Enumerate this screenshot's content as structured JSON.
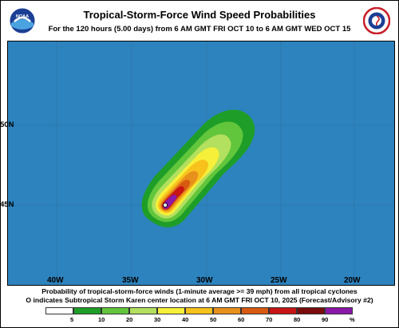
{
  "header": {
    "title": "Tropical-Storm-Force Wind Speed Probabilities",
    "subtitle": "For the 120 hours (5.00 days) from 6 AM GMT FRI OCT 10 to 6 AM GMT WED OCT 15",
    "left_logo": "noaa-logo",
    "right_logo": "national-weather-service-logo"
  },
  "map": {
    "ocean_color": "#2d83be",
    "grid_color": "#1f6aa0",
    "lat_labels": [
      "50N",
      "45N"
    ],
    "lon_labels": [
      "40W",
      "35W",
      "30W",
      "25W",
      "20W"
    ],
    "storm_marker": "storm-center-marker"
  },
  "captions": {
    "line1": "Probability of tropical-storm-force winds (1-minute average >= 39 mph) from all tropical cyclones",
    "line2": "O indicates Subtropical Storm Karen center location at 6 AM GMT FRI OCT 10, 2025 (Forecast/Advisory #2)"
  },
  "legend": {
    "labels": [
      "5",
      "10",
      "20",
      "30",
      "40",
      "50",
      "60",
      "70",
      "80",
      "90",
      "%"
    ],
    "colors": [
      "#ffffff",
      "#1e9e28",
      "#62c63c",
      "#b3e05e",
      "#f6f03a",
      "#f8c21c",
      "#e8901c",
      "#d85a10",
      "#c81414",
      "#7a0c0c",
      "#8a18a8"
    ]
  }
}
